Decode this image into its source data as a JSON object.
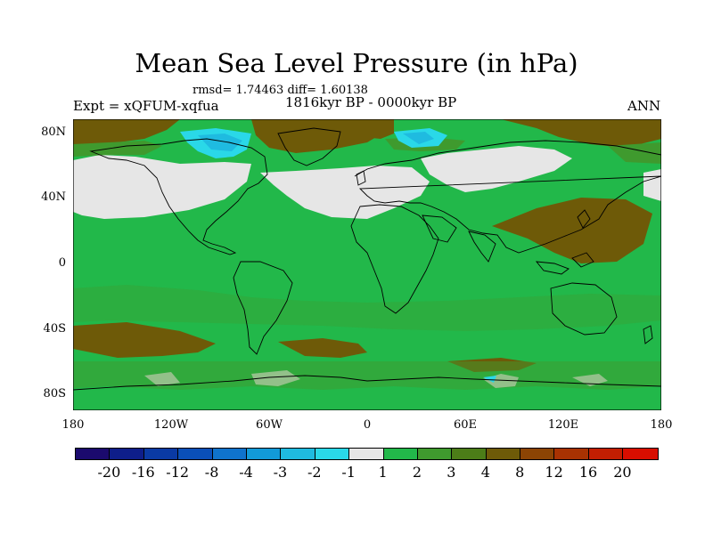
{
  "title": "Mean Sea Level Pressure (in hPa)",
  "stats": "rmsd= 1.74463 diff= 1.60138",
  "experiment": "Expt = xQFUM-xqfua",
  "period": "1816kyr BP - 0000kyr BP",
  "season": "ANN",
  "lat_labels": [
    "80N",
    "40N",
    "0",
    "40S",
    "80S"
  ],
  "lon_labels": [
    "180",
    "120W",
    "60W",
    "0",
    "60E",
    "120E",
    "180"
  ],
  "colorbar": {
    "labels": [
      "-20",
      "-16",
      "-12",
      "-8",
      "-4",
      "-3",
      "-2",
      "-1",
      "1",
      "2",
      "3",
      "4",
      "8",
      "12",
      "16",
      "20"
    ],
    "colors": [
      "#1b0a6e",
      "#0e1e8a",
      "#0a3aa4",
      "#0a4fb8",
      "#0f73cc",
      "#129ad8",
      "#1fbbe0",
      "#2ad8e8",
      "#e6e6e6",
      "#22b84a",
      "#3f9a2e",
      "#4c7d18",
      "#6e5a08",
      "#8c4404",
      "#a83202",
      "#c21e02",
      "#d80e00"
    ]
  },
  "map_colors": {
    "ocean_base": "#22b84a",
    "neutral": "#e6e6e6",
    "positive_3": "#3f9a2e",
    "positive_4": "#6e5a08",
    "negative_2": "#1fbbe0",
    "negative_1": "#2ad8e8",
    "coast": "#000000"
  }
}
